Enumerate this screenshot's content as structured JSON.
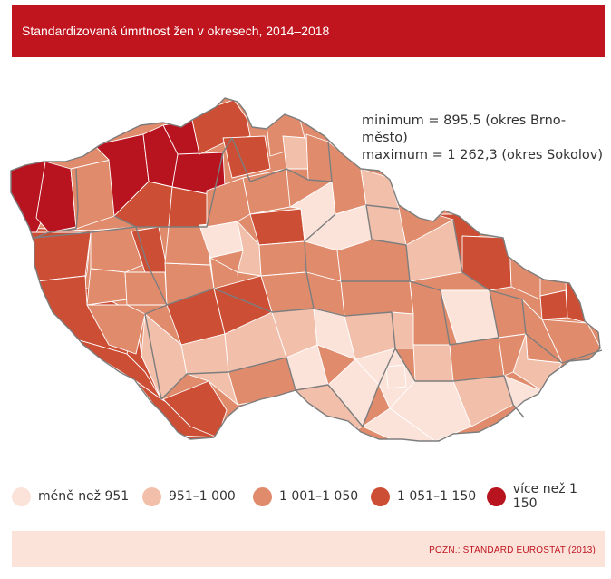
{
  "header": {
    "title": "Standardizovaná úmrtnost žen v okresech, 2014–2018"
  },
  "stats": {
    "minimum": "minimum = 895,5 (okres Brno-město)",
    "maximum": "maximum = 1 262,3 (okres Sokolov)"
  },
  "colors": {
    "header": "#c0141e",
    "footer": "#fbe3da",
    "class_1": "#fbe3da",
    "class_2": "#f2bfaa",
    "class_3": "#df8b6c",
    "class_4": "#cc4e35",
    "class_5": "#b81420"
  },
  "legend": {
    "items": [
      {
        "label": "méně než 951",
        "color": "#fbe3da"
      },
      {
        "label": "951–1 000",
        "color": "#f2bfaa"
      },
      {
        "label": "1 001–1 050",
        "color": "#df8b6c"
      },
      {
        "label": "1 051–1 150",
        "color": "#cc4e35"
      },
      {
        "label": "více než 1 150",
        "color": "#b81420"
      }
    ]
  },
  "footer": {
    "note": "POZN.: STANDARD EUROSTAT (2013)"
  }
}
